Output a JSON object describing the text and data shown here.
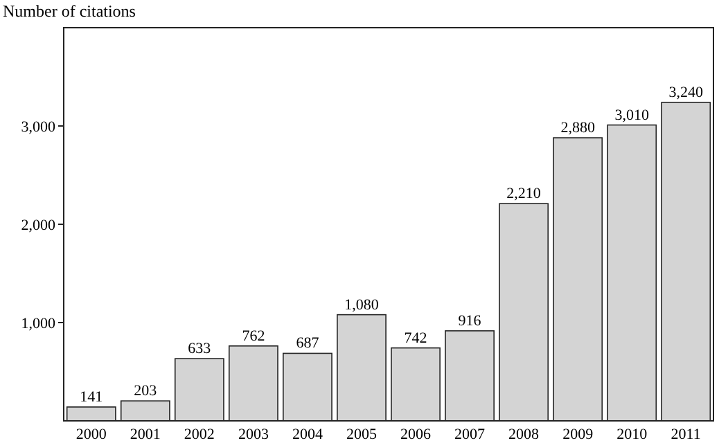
{
  "chart_data": {
    "type": "bar",
    "ylabel": "Number of citations",
    "categories": [
      "2000",
      "2001",
      "2002",
      "2003",
      "2004",
      "2005",
      "2006",
      "2007",
      "2008",
      "2009",
      "2010",
      "2011"
    ],
    "values": [
      141,
      203,
      633,
      762,
      687,
      1080,
      742,
      916,
      2210,
      2880,
      3010,
      3240
    ],
    "value_labels": [
      "141",
      "203",
      "633",
      "762",
      "687",
      "1,080",
      "742",
      "916",
      "2,210",
      "2,880",
      "3,010",
      "3,240"
    ],
    "color": "#d4d4d4",
    "ylim": [
      0,
      4000
    ],
    "yticks": [
      {
        "value": 1000,
        "label": "1,000"
      },
      {
        "value": 2000,
        "label": "2,000"
      },
      {
        "value": 3000,
        "label": "3,000"
      }
    ],
    "grid": false
  }
}
